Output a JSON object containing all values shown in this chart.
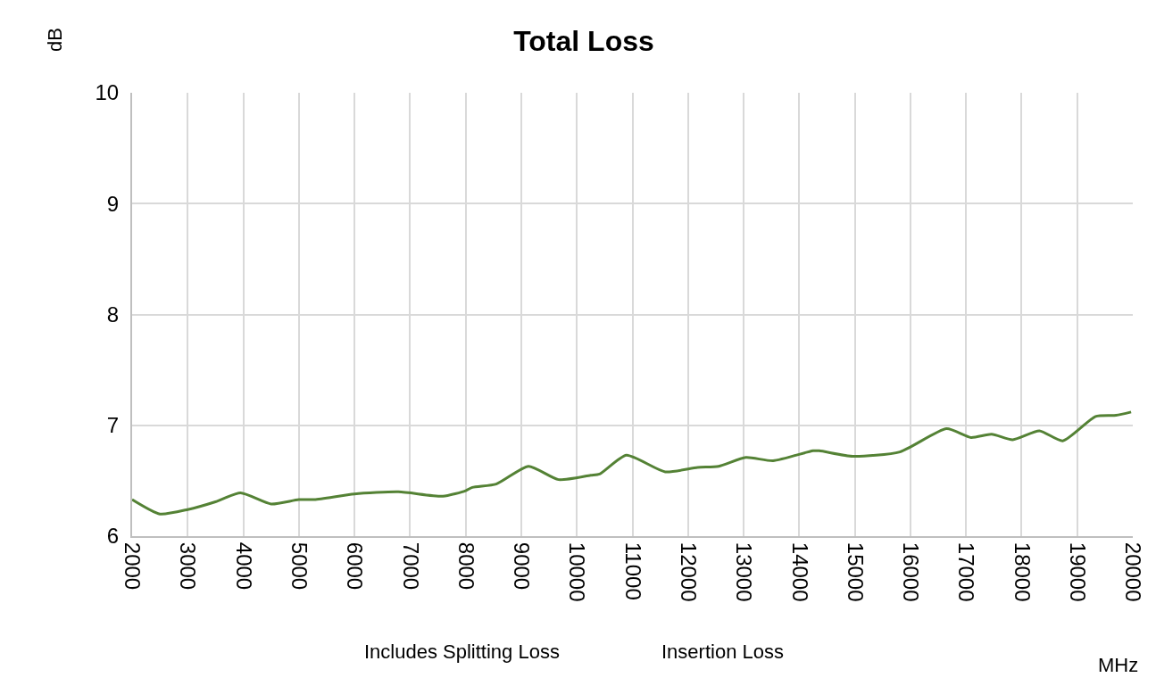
{
  "chart_data": {
    "type": "line",
    "title": "Total Loss",
    "xlabel": "MHz",
    "ylabel": "dB",
    "annotations": [
      "Includes Splitting Loss",
      "Insertion Loss"
    ],
    "x": [
      2000,
      2500,
      3000,
      3500,
      3950,
      4500,
      5000,
      5280,
      6000,
      6790,
      7590,
      8000,
      8120,
      8550,
      9130,
      9670,
      10250,
      10410,
      10890,
      11590,
      12170,
      12550,
      13040,
      13530,
      14250,
      14360,
      14960,
      15810,
      16650,
      17090,
      17460,
      17840,
      18320,
      18740,
      19330,
      19700,
      19970
    ],
    "series": [
      {
        "color": "#548235",
        "values": [
          6.33,
          6.2,
          6.24,
          6.31,
          6.39,
          6.29,
          6.33,
          6.33,
          6.38,
          6.4,
          6.36,
          6.41,
          6.44,
          6.47,
          6.63,
          6.51,
          6.55,
          6.56,
          6.73,
          6.58,
          6.62,
          6.63,
          6.71,
          6.68,
          6.77,
          6.77,
          6.72,
          6.76,
          6.97,
          6.89,
          6.92,
          6.87,
          6.95,
          6.86,
          7.08,
          7.09,
          7.12
        ]
      }
    ],
    "xlim": [
      2000,
      20000
    ],
    "xticks": [
      2000,
      3000,
      4000,
      5000,
      6000,
      7000,
      8000,
      9000,
      10000,
      11000,
      12000,
      13000,
      14000,
      15000,
      16000,
      17000,
      18000,
      19000,
      20000
    ],
    "ylim": [
      6,
      10
    ],
    "yticks": [
      6,
      7,
      8,
      9,
      10
    ],
    "grid": true,
    "legend": false,
    "marker": "none",
    "line_style": "solid"
  }
}
